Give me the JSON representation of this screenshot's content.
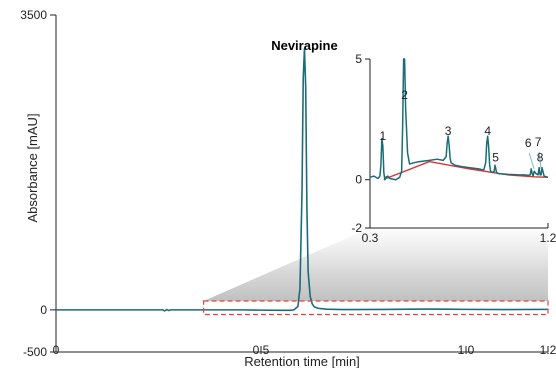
{
  "chart_data": [
    {
      "type": "line",
      "id": "main",
      "xlabel": "Retention time [min]",
      "ylabel": "Absorbance [mAU]",
      "xlim": [
        0,
        1.2
      ],
      "ylim": [
        -500,
        3500
      ],
      "x_ticks": [
        0,
        0.5,
        1.0,
        1.2
      ],
      "x_tick_labels": [
        "0",
        "0.5",
        "1.0",
        "1.2"
      ],
      "y_ticks": [
        -500,
        0,
        3500
      ],
      "y_tick_labels": [
        "-500",
        "0",
        "3500"
      ],
      "annotation": "Nevirapine",
      "annotation_x": 0.606,
      "line_color": "#1a6d78",
      "zoom_box": {
        "x": [
          0.36,
          1.2
        ],
        "y": [
          -55,
          105
        ],
        "color": "#e84040"
      },
      "series": [
        {
          "x": [
            0,
            0.26,
            0.265,
            0.27,
            0.275,
            0.28,
            0.45,
            0.5,
            0.55,
            0.57,
            0.58,
            0.59,
            0.595,
            0.6,
            0.603,
            0.606,
            0.609,
            0.612,
            0.615,
            0.62,
            0.625,
            0.63,
            0.64,
            0.66,
            0.7,
            0.8,
            0.9,
            0.95,
            1.0,
            1.1,
            1.2
          ],
          "y": [
            0,
            0,
            -12,
            4,
            -8,
            0,
            0,
            -3,
            -5,
            -5,
            0,
            40,
            250,
            1400,
            2750,
            3100,
            2650,
            1200,
            450,
            160,
            70,
            35,
            18,
            8,
            4,
            5,
            10,
            8,
            6,
            4,
            6
          ]
        }
      ]
    },
    {
      "type": "line",
      "id": "inset",
      "xlim": [
        0.3,
        1.2
      ],
      "ylim": [
        -2,
        5
      ],
      "x_ticks": [
        0.3,
        1.2
      ],
      "x_tick_labels": [
        "0.3",
        "1.2"
      ],
      "y_ticks": [
        -2,
        0,
        5
      ],
      "y_tick_labels": [
        "-2",
        "0",
        "5"
      ],
      "peak_labels": [
        {
          "label": "1",
          "x": 0.365,
          "y": 1.65
        },
        {
          "label": "2",
          "x": 0.475,
          "y": 3.35
        },
        {
          "label": "3",
          "x": 0.695,
          "y": 1.85
        },
        {
          "label": "4",
          "x": 0.895,
          "y": 1.85
        },
        {
          "label": "5",
          "x": 0.935,
          "y": 0.75
        },
        {
          "label": "6",
          "x": 1.1,
          "y": 1.35
        },
        {
          "label": "7",
          "x": 1.15,
          "y": 1.4
        },
        {
          "label": "8",
          "x": 1.16,
          "y": 0.75
        }
      ],
      "leader_lines": [
        {
          "from_x": 1.105,
          "from_y": 1.1,
          "to_x": 1.13,
          "to_y": 0.45
        },
        {
          "from_x": 1.155,
          "from_y": 1.15,
          "to_x": 1.165,
          "to_y": 0.45
        }
      ],
      "series": [
        {
          "name": "trace",
          "x": [
            0.3,
            0.32,
            0.34,
            0.35,
            0.355,
            0.36,
            0.365,
            0.37,
            0.375,
            0.38,
            0.39,
            0.4,
            0.43,
            0.45,
            0.46,
            0.465,
            0.47,
            0.475,
            0.48,
            0.49,
            0.5,
            0.52,
            0.55,
            0.6,
            0.64,
            0.67,
            0.685,
            0.69,
            0.695,
            0.7,
            0.705,
            0.71,
            0.73,
            0.76,
            0.8,
            0.85,
            0.875,
            0.885,
            0.89,
            0.895,
            0.9,
            0.905,
            0.91,
            0.92,
            0.928,
            0.932,
            0.936,
            0.94,
            0.95,
            1.0,
            1.05,
            1.08,
            1.1,
            1.11,
            1.115,
            1.12,
            1.125,
            1.13,
            1.14,
            1.15,
            1.155,
            1.16,
            1.165,
            1.17,
            1.18,
            1.2
          ],
          "y": [
            0.1,
            0.15,
            0.05,
            0.15,
            0.6,
            1.7,
            1.4,
            0.3,
            0.0,
            0.1,
            0.15,
            0.05,
            0.0,
            0.1,
            0.35,
            2.2,
            5.2,
            5.2,
            3.0,
            1.1,
            0.65,
            0.7,
            0.75,
            0.8,
            0.85,
            0.8,
            0.95,
            1.5,
            1.8,
            1.45,
            0.9,
            0.7,
            0.6,
            0.55,
            0.5,
            0.45,
            0.4,
            0.7,
            1.5,
            1.8,
            1.35,
            0.6,
            0.35,
            0.3,
            0.35,
            0.6,
            0.45,
            0.3,
            0.25,
            0.22,
            0.2,
            0.2,
            0.18,
            0.2,
            0.45,
            0.25,
            0.15,
            0.35,
            0.25,
            0.2,
            0.5,
            0.2,
            0.2,
            0.5,
            0.15,
            0.1
          ]
        },
        {
          "name": "baseline",
          "x": [
            0.37,
            0.38,
            0.46,
            0.6,
            0.8,
            1.0,
            1.13,
            1.2
          ],
          "y": [
            0.0,
            0.05,
            0.3,
            0.75,
            0.45,
            0.2,
            0.12,
            0.1
          ],
          "color": "#e03030"
        }
      ]
    }
  ]
}
